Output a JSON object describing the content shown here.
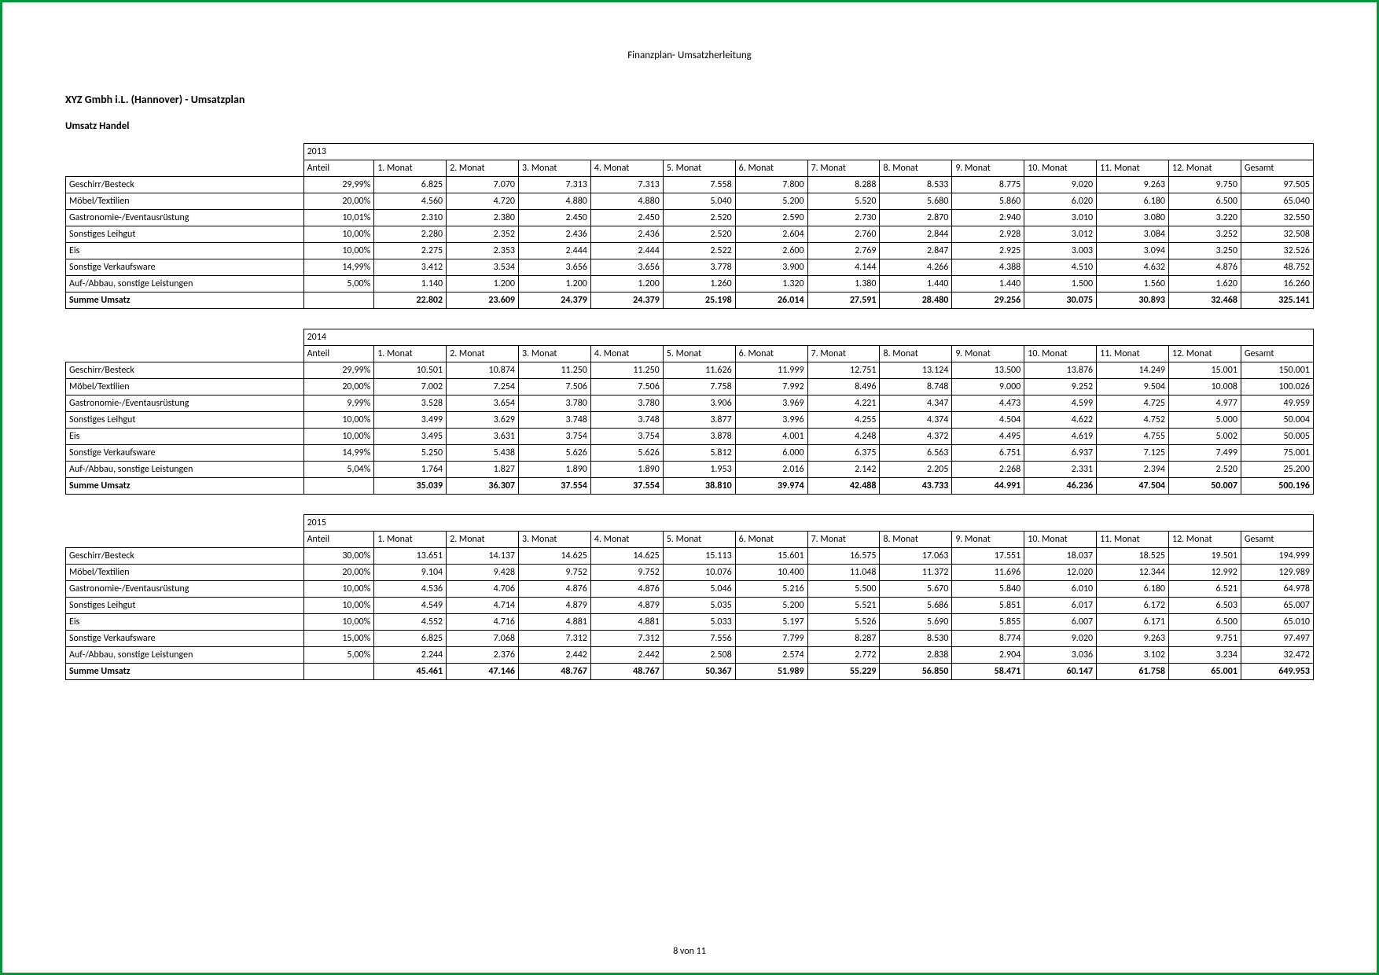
{
  "header": "Finanzplan- Umsatzherleitung",
  "company": "XYZ Gmbh i.L. (Hannover)  - Umsatzplan",
  "section": "Umsatz Handel",
  "footer": "8 von 11",
  "colHeaders": {
    "anteil": "Anteil",
    "months": [
      "1. Monat",
      "2. Monat",
      "3. Monat",
      "4. Monat",
      "5. Monat",
      "6. Monat",
      "7. Monat",
      "8. Monat",
      "9. Monat",
      "10. Monat",
      "11. Monat",
      "12. Monat"
    ],
    "gesamt": "Gesamt"
  },
  "categories": [
    "Geschirr/Besteck",
    "Möbel/Textilien",
    "Gastronomie-/Eventausrüstung",
    "Sonstiges Leihgut",
    "Eis",
    "Sonstige Verkaufsware",
    "Auf-/Abbau, sonstige Leistungen"
  ],
  "sumLabel": "Summe Umsatz",
  "tables": [
    {
      "year": "2013",
      "rows": [
        {
          "anteil": "29,99%",
          "m": [
            "6.825",
            "7.070",
            "7.313",
            "7.313",
            "7.558",
            "7.800",
            "8.288",
            "8.533",
            "8.775",
            "9.020",
            "9.263",
            "9.750"
          ],
          "g": "97.505"
        },
        {
          "anteil": "20,00%",
          "m": [
            "4.560",
            "4.720",
            "4.880",
            "4.880",
            "5.040",
            "5.200",
            "5.520",
            "5.680",
            "5.860",
            "6.020",
            "6.180",
            "6.500"
          ],
          "g": "65.040"
        },
        {
          "anteil": "10,01%",
          "m": [
            "2.310",
            "2.380",
            "2.450",
            "2.450",
            "2.520",
            "2.590",
            "2.730",
            "2.870",
            "2.940",
            "3.010",
            "3.080",
            "3.220"
          ],
          "g": "32.550"
        },
        {
          "anteil": "10,00%",
          "m": [
            "2.280",
            "2.352",
            "2.436",
            "2.436",
            "2.520",
            "2.604",
            "2.760",
            "2.844",
            "2.928",
            "3.012",
            "3.084",
            "3.252"
          ],
          "g": "32.508"
        },
        {
          "anteil": "10,00%",
          "m": [
            "2.275",
            "2.353",
            "2.444",
            "2.444",
            "2.522",
            "2.600",
            "2.769",
            "2.847",
            "2.925",
            "3.003",
            "3.094",
            "3.250"
          ],
          "g": "32.526"
        },
        {
          "anteil": "14,99%",
          "m": [
            "3.412",
            "3.534",
            "3.656",
            "3.656",
            "3.778",
            "3.900",
            "4.144",
            "4.266",
            "4.388",
            "4.510",
            "4.632",
            "4.876"
          ],
          "g": "48.752"
        },
        {
          "anteil": "5,00%",
          "m": [
            "1.140",
            "1.200",
            "1.200",
            "1.200",
            "1.260",
            "1.320",
            "1.380",
            "1.440",
            "1.440",
            "1.500",
            "1.560",
            "1.620"
          ],
          "g": "16.260"
        }
      ],
      "sum": {
        "m": [
          "22.802",
          "23.609",
          "24.379",
          "24.379",
          "25.198",
          "26.014",
          "27.591",
          "28.480",
          "29.256",
          "30.075",
          "30.893",
          "32.468"
        ],
        "g": "325.141"
      }
    },
    {
      "year": "2014",
      "rows": [
        {
          "anteil": "29,99%",
          "m": [
            "10.501",
            "10.874",
            "11.250",
            "11.250",
            "11.626",
            "11.999",
            "12.751",
            "13.124",
            "13.500",
            "13.876",
            "14.249",
            "15.001"
          ],
          "g": "150.001"
        },
        {
          "anteil": "20,00%",
          "m": [
            "7.002",
            "7.254",
            "7.506",
            "7.506",
            "7.758",
            "7.992",
            "8.496",
            "8.748",
            "9.000",
            "9.252",
            "9.504",
            "10.008"
          ],
          "g": "100.026"
        },
        {
          "anteil": "9,99%",
          "m": [
            "3.528",
            "3.654",
            "3.780",
            "3.780",
            "3.906",
            "3.969",
            "4.221",
            "4.347",
            "4.473",
            "4.599",
            "4.725",
            "4.977"
          ],
          "g": "49.959"
        },
        {
          "anteil": "10,00%",
          "m": [
            "3.499",
            "3.629",
            "3.748",
            "3.748",
            "3.877",
            "3.996",
            "4.255",
            "4.374",
            "4.504",
            "4.622",
            "4.752",
            "5.000"
          ],
          "g": "50.004"
        },
        {
          "anteil": "10,00%",
          "m": [
            "3.495",
            "3.631",
            "3.754",
            "3.754",
            "3.878",
            "4.001",
            "4.248",
            "4.372",
            "4.495",
            "4.619",
            "4.755",
            "5.002"
          ],
          "g": "50.005"
        },
        {
          "anteil": "14,99%",
          "m": [
            "5.250",
            "5.438",
            "5.626",
            "5.626",
            "5.812",
            "6.000",
            "6.375",
            "6.563",
            "6.751",
            "6.937",
            "7.125",
            "7.499"
          ],
          "g": "75.001"
        },
        {
          "anteil": "5,04%",
          "m": [
            "1.764",
            "1.827",
            "1.890",
            "1.890",
            "1.953",
            "2.016",
            "2.142",
            "2.205",
            "2.268",
            "2.331",
            "2.394",
            "2.520"
          ],
          "g": "25.200"
        }
      ],
      "sum": {
        "m": [
          "35.039",
          "36.307",
          "37.554",
          "37.554",
          "38.810",
          "39.974",
          "42.488",
          "43.733",
          "44.991",
          "46.236",
          "47.504",
          "50.007"
        ],
        "g": "500.196"
      }
    },
    {
      "year": "2015",
      "rows": [
        {
          "anteil": "30,00%",
          "m": [
            "13.651",
            "14.137",
            "14.625",
            "14.625",
            "15.113",
            "15.601",
            "16.575",
            "17.063",
            "17.551",
            "18.037",
            "18.525",
            "19.501"
          ],
          "g": "194.999"
        },
        {
          "anteil": "20,00%",
          "m": [
            "9.104",
            "9.428",
            "9.752",
            "9.752",
            "10.076",
            "10.400",
            "11.048",
            "11.372",
            "11.696",
            "12.020",
            "12.344",
            "12.992"
          ],
          "g": "129.989"
        },
        {
          "anteil": "10,00%",
          "m": [
            "4.536",
            "4.706",
            "4.876",
            "4.876",
            "5.046",
            "5.216",
            "5.500",
            "5.670",
            "5.840",
            "6.010",
            "6.180",
            "6.521"
          ],
          "g": "64.978"
        },
        {
          "anteil": "10,00%",
          "m": [
            "4.549",
            "4.714",
            "4.879",
            "4.879",
            "5.035",
            "5.200",
            "5.521",
            "5.686",
            "5.851",
            "6.017",
            "6.172",
            "6.503"
          ],
          "g": "65.007"
        },
        {
          "anteil": "10,00%",
          "m": [
            "4.552",
            "4.716",
            "4.881",
            "4.881",
            "5.033",
            "5.197",
            "5.526",
            "5.690",
            "5.855",
            "6.007",
            "6.171",
            "6.500"
          ],
          "g": "65.010"
        },
        {
          "anteil": "15,00%",
          "m": [
            "6.825",
            "7.068",
            "7.312",
            "7.312",
            "7.556",
            "7.799",
            "8.287",
            "8.530",
            "8.774",
            "9.020",
            "9.263",
            "9.751"
          ],
          "g": "97.497"
        },
        {
          "anteil": "5,00%",
          "m": [
            "2.244",
            "2.376",
            "2.442",
            "2.442",
            "2.508",
            "2.574",
            "2.772",
            "2.838",
            "2.904",
            "3.036",
            "3.102",
            "3.234"
          ],
          "g": "32.472"
        }
      ],
      "sum": {
        "m": [
          "45.461",
          "47.146",
          "48.767",
          "48.767",
          "50.367",
          "51.989",
          "55.229",
          "56.850",
          "58.471",
          "60.147",
          "61.758",
          "65.001"
        ],
        "g": "649.953"
      }
    }
  ]
}
